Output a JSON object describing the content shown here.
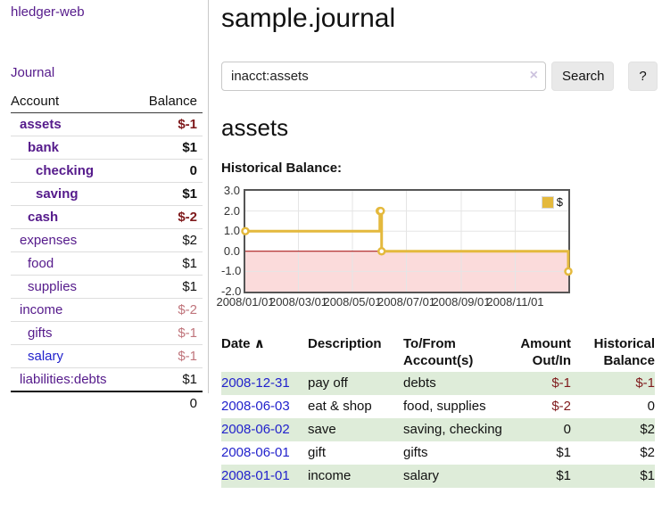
{
  "sidebar": {
    "app_title": "hledger-web",
    "nav": {
      "journal": "Journal"
    },
    "table": {
      "account_header": "Account",
      "balance_header": "Balance"
    },
    "accounts": [
      {
        "label": "assets",
        "cls_name": "d1 strong",
        "balance": "$-1",
        "cls_bal": "neg strong"
      },
      {
        "label": "bank",
        "cls_name": "d2 strong",
        "balance": "$1",
        "cls_bal": "strong"
      },
      {
        "label": "checking",
        "cls_name": "d3 strong",
        "balance": "0",
        "cls_bal": "strong"
      },
      {
        "label": "saving",
        "cls_name": "d3 strong",
        "balance": "$1",
        "cls_bal": "strong"
      },
      {
        "label": "cash",
        "cls_name": "d2 strong",
        "balance": "$-2",
        "cls_bal": "neg strong"
      },
      {
        "label": "expenses",
        "cls_name": "d1",
        "balance": "$2",
        "cls_bal": ""
      },
      {
        "label": "food",
        "cls_name": "d2",
        "balance": "$1",
        "cls_bal": ""
      },
      {
        "label": "supplies",
        "cls_name": "d2",
        "balance": "$1",
        "cls_bal": ""
      },
      {
        "label": "income",
        "cls_name": "d1",
        "balance": "$-2",
        "cls_bal": "neg-light"
      },
      {
        "label": "gifts",
        "cls_name": "d2",
        "balance": "$-1",
        "cls_bal": "neg-light"
      },
      {
        "label": "salary",
        "cls_name": "d2 blue",
        "balance": "$-1",
        "cls_bal": "neg-light"
      },
      {
        "label": "liabilities:debts",
        "cls_name": "d1",
        "balance": "$1",
        "cls_bal": ""
      }
    ],
    "total": "0"
  },
  "main": {
    "title": "sample.journal",
    "search": {
      "query": "inacct:assets",
      "clear_icon": "×",
      "button": "Search",
      "help_button": "?"
    },
    "account_heading": "assets",
    "chart_heading": "Historical Balance:"
  },
  "chart_data": {
    "type": "line",
    "step": true,
    "title": "Historical Balance",
    "series": [
      {
        "name": "$",
        "color": "#e4b93d",
        "x": [
          "2008-01-01",
          "2008-06-01",
          "2008-06-02",
          "2008-06-03",
          "2008-12-31"
        ],
        "values": [
          1,
          2,
          2,
          0,
          -1
        ]
      }
    ],
    "x_ticks": [
      "2008/01/01",
      "2008/03/01",
      "2008/05/01",
      "2008/07/01",
      "2008/09/01",
      "2008/11/01"
    ],
    "y_ticks": [
      "3.0",
      "2.0",
      "1.0",
      "0.0",
      "-1.0",
      "-2.0"
    ],
    "xlim": [
      "2008-01-01",
      "2008-12-31"
    ],
    "ylim": [
      -2,
      3
    ],
    "grid": true,
    "legend_position": "top-right",
    "negative_region_color": "#fbdbdb",
    "zero_line_color": "#a40000",
    "grid_color": "#e5e5e5"
  },
  "register": {
    "headers": {
      "date": "Date",
      "sort_icon": "∧",
      "description": "Description",
      "tofrom": "To/From Account(s)",
      "amount": "Amount Out/In",
      "balance": "Historical Balance"
    },
    "rows": [
      {
        "date": "2008-12-31",
        "description": "pay off",
        "accounts": "debts",
        "amount": "$-1",
        "cls_amount": "neg",
        "balance": "$-1",
        "cls_balance": "neg"
      },
      {
        "date": "2008-06-03",
        "description": "eat & shop",
        "accounts": "food, supplies",
        "amount": "$-2",
        "cls_amount": "neg",
        "balance": "0",
        "cls_balance": ""
      },
      {
        "date": "2008-06-02",
        "description": "save",
        "accounts": "saving, checking",
        "amount": "0",
        "cls_amount": "",
        "balance": "$2",
        "cls_balance": ""
      },
      {
        "date": "2008-06-01",
        "description": "gift",
        "accounts": "gifts",
        "amount": "$1",
        "cls_amount": "",
        "balance": "$2",
        "cls_balance": ""
      },
      {
        "date": "2008-01-01",
        "description": "income",
        "accounts": "salary",
        "amount": "$1",
        "cls_amount": "",
        "balance": "$1",
        "cls_balance": ""
      }
    ]
  }
}
